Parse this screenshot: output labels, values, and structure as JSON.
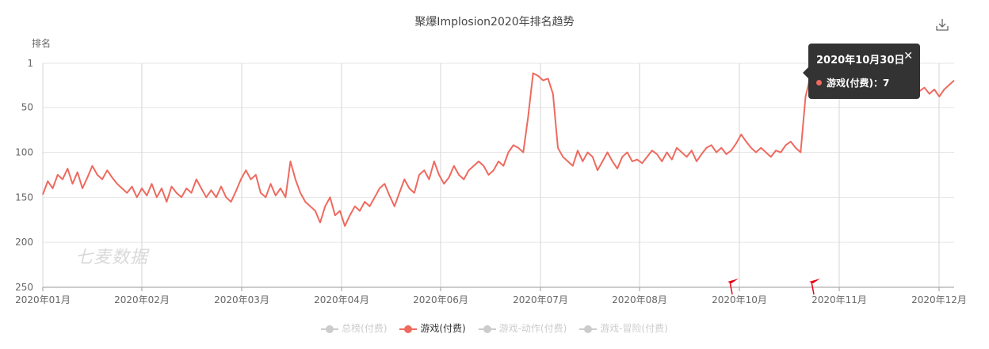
{
  "chart_data": {
    "type": "line",
    "title": "聚爆Implosion2020年排名趋势",
    "ylabel": "排名",
    "yticks": [
      1,
      50,
      100,
      150,
      200,
      250
    ],
    "ylim": [
      1,
      250
    ],
    "y_inverted": true,
    "xticks": [
      "2020年01月",
      "2020年02月",
      "2020年03月",
      "2020年04月",
      "2020年06月",
      "2020年07月",
      "2020年08月",
      "2020年10月",
      "2020年11月",
      "2020年12月"
    ],
    "grid": true,
    "legend_position": "bottom",
    "series": [
      {
        "name": "总榜(付费)",
        "visible": false,
        "values": []
      },
      {
        "name": "游戏(付费)",
        "visible": true,
        "values": [
          [
            0,
            147
          ],
          [
            5,
            132
          ],
          [
            10,
            140
          ],
          [
            15,
            125
          ],
          [
            20,
            130
          ],
          [
            25,
            118
          ],
          [
            30,
            135
          ],
          [
            35,
            122
          ],
          [
            40,
            140
          ],
          [
            45,
            128
          ],
          [
            50,
            115
          ],
          [
            55,
            125
          ],
          [
            60,
            130
          ],
          [
            65,
            120
          ],
          [
            70,
            128
          ],
          [
            75,
            135
          ],
          [
            80,
            140
          ],
          [
            85,
            145
          ],
          [
            90,
            138
          ],
          [
            95,
            150
          ],
          [
            100,
            140
          ],
          [
            105,
            148
          ],
          [
            110,
            135
          ],
          [
            115,
            150
          ],
          [
            120,
            140
          ],
          [
            125,
            155
          ],
          [
            130,
            138
          ],
          [
            135,
            145
          ],
          [
            140,
            150
          ],
          [
            145,
            140
          ],
          [
            150,
            145
          ],
          [
            155,
            130
          ],
          [
            160,
            140
          ],
          [
            165,
            150
          ],
          [
            170,
            142
          ],
          [
            175,
            150
          ],
          [
            180,
            138
          ],
          [
            185,
            150
          ],
          [
            190,
            155
          ],
          [
            195,
            143
          ],
          [
            200,
            130
          ],
          [
            205,
            120
          ],
          [
            210,
            130
          ],
          [
            215,
            125
          ],
          [
            220,
            145
          ],
          [
            225,
            150
          ],
          [
            230,
            135
          ],
          [
            235,
            148
          ],
          [
            240,
            140
          ],
          [
            245,
            150
          ],
          [
            250,
            110
          ],
          [
            255,
            130
          ],
          [
            260,
            145
          ],
          [
            265,
            155
          ],
          [
            270,
            160
          ],
          [
            275,
            165
          ],
          [
            280,
            178
          ],
          [
            285,
            160
          ],
          [
            290,
            150
          ],
          [
            295,
            170
          ],
          [
            300,
            165
          ],
          [
            305,
            182
          ],
          [
            310,
            170
          ],
          [
            315,
            160
          ],
          [
            320,
            165
          ],
          [
            325,
            155
          ],
          [
            330,
            160
          ],
          [
            335,
            150
          ],
          [
            340,
            140
          ],
          [
            345,
            135
          ],
          [
            350,
            148
          ],
          [
            355,
            160
          ],
          [
            360,
            145
          ],
          [
            365,
            130
          ],
          [
            370,
            140
          ],
          [
            375,
            145
          ],
          [
            380,
            125
          ],
          [
            385,
            120
          ],
          [
            390,
            130
          ],
          [
            395,
            110
          ],
          [
            400,
            125
          ],
          [
            405,
            135
          ],
          [
            410,
            128
          ],
          [
            415,
            115
          ],
          [
            420,
            125
          ],
          [
            425,
            130
          ],
          [
            430,
            120
          ],
          [
            435,
            115
          ],
          [
            440,
            110
          ],
          [
            445,
            115
          ],
          [
            450,
            125
          ],
          [
            455,
            120
          ],
          [
            460,
            110
          ],
          [
            465,
            115
          ],
          [
            470,
            100
          ],
          [
            475,
            92
          ],
          [
            480,
            95
          ],
          [
            485,
            100
          ],
          [
            490,
            60
          ],
          [
            495,
            12
          ],
          [
            500,
            15
          ],
          [
            505,
            20
          ],
          [
            510,
            18
          ],
          [
            515,
            35
          ],
          [
            520,
            95
          ],
          [
            525,
            105
          ],
          [
            530,
            110
          ],
          [
            535,
            115
          ],
          [
            540,
            98
          ],
          [
            545,
            110
          ],
          [
            550,
            100
          ],
          [
            555,
            105
          ],
          [
            560,
            120
          ],
          [
            565,
            110
          ],
          [
            570,
            100
          ],
          [
            575,
            110
          ],
          [
            580,
            118
          ],
          [
            585,
            105
          ],
          [
            590,
            100
          ],
          [
            595,
            110
          ],
          [
            600,
            108
          ],
          [
            605,
            112
          ],
          [
            610,
            105
          ],
          [
            615,
            98
          ],
          [
            620,
            102
          ],
          [
            625,
            110
          ],
          [
            630,
            100
          ],
          [
            635,
            108
          ],
          [
            640,
            95
          ],
          [
            645,
            100
          ],
          [
            650,
            105
          ],
          [
            655,
            98
          ],
          [
            660,
            110
          ],
          [
            665,
            102
          ],
          [
            670,
            95
          ],
          [
            675,
            92
          ],
          [
            680,
            100
          ],
          [
            685,
            95
          ],
          [
            690,
            102
          ],
          [
            695,
            98
          ],
          [
            700,
            90
          ],
          [
            705,
            80
          ],
          [
            710,
            88
          ],
          [
            715,
            95
          ],
          [
            720,
            100
          ],
          [
            725,
            95
          ],
          [
            730,
            100
          ],
          [
            735,
            105
          ],
          [
            740,
            98
          ],
          [
            745,
            100
          ],
          [
            750,
            92
          ],
          [
            755,
            88
          ],
          [
            760,
            95
          ],
          [
            765,
            100
          ],
          [
            770,
            38
          ],
          [
            775,
            15
          ],
          [
            780,
            12
          ],
          [
            785,
            10
          ],
          [
            790,
            12
          ],
          [
            795,
            10
          ],
          [
            800,
            12
          ],
          [
            805,
            15
          ],
          [
            810,
            12
          ],
          [
            815,
            10
          ],
          [
            820,
            8
          ],
          [
            825,
            12
          ],
          [
            830,
            10
          ],
          [
            835,
            15
          ],
          [
            840,
            12
          ],
          [
            845,
            18
          ],
          [
            850,
            10
          ],
          [
            855,
            15
          ],
          [
            860,
            20
          ],
          [
            865,
            25
          ],
          [
            870,
            30
          ],
          [
            875,
            22
          ],
          [
            880,
            28
          ],
          [
            885,
            32
          ],
          [
            890,
            28
          ],
          [
            895,
            35
          ],
          [
            900,
            30
          ],
          [
            905,
            38
          ],
          [
            910,
            30
          ],
          [
            915,
            25
          ],
          [
            920,
            20
          ]
        ]
      },
      {
        "name": "游戏-动作(付费)",
        "visible": false,
        "values": []
      },
      {
        "name": "游戏-冒险(付费)",
        "visible": false,
        "values": []
      }
    ]
  },
  "tooltip": {
    "title": "2020年10月30日",
    "series_label": "游戏(付费)：",
    "value": "7"
  },
  "watermark": "七麦数据",
  "colors": {
    "line": "#ee6a5f",
    "grid": "#e6e6e6",
    "axis": "#999999",
    "legend_off": "#cccccc",
    "flag": "#e60012"
  }
}
